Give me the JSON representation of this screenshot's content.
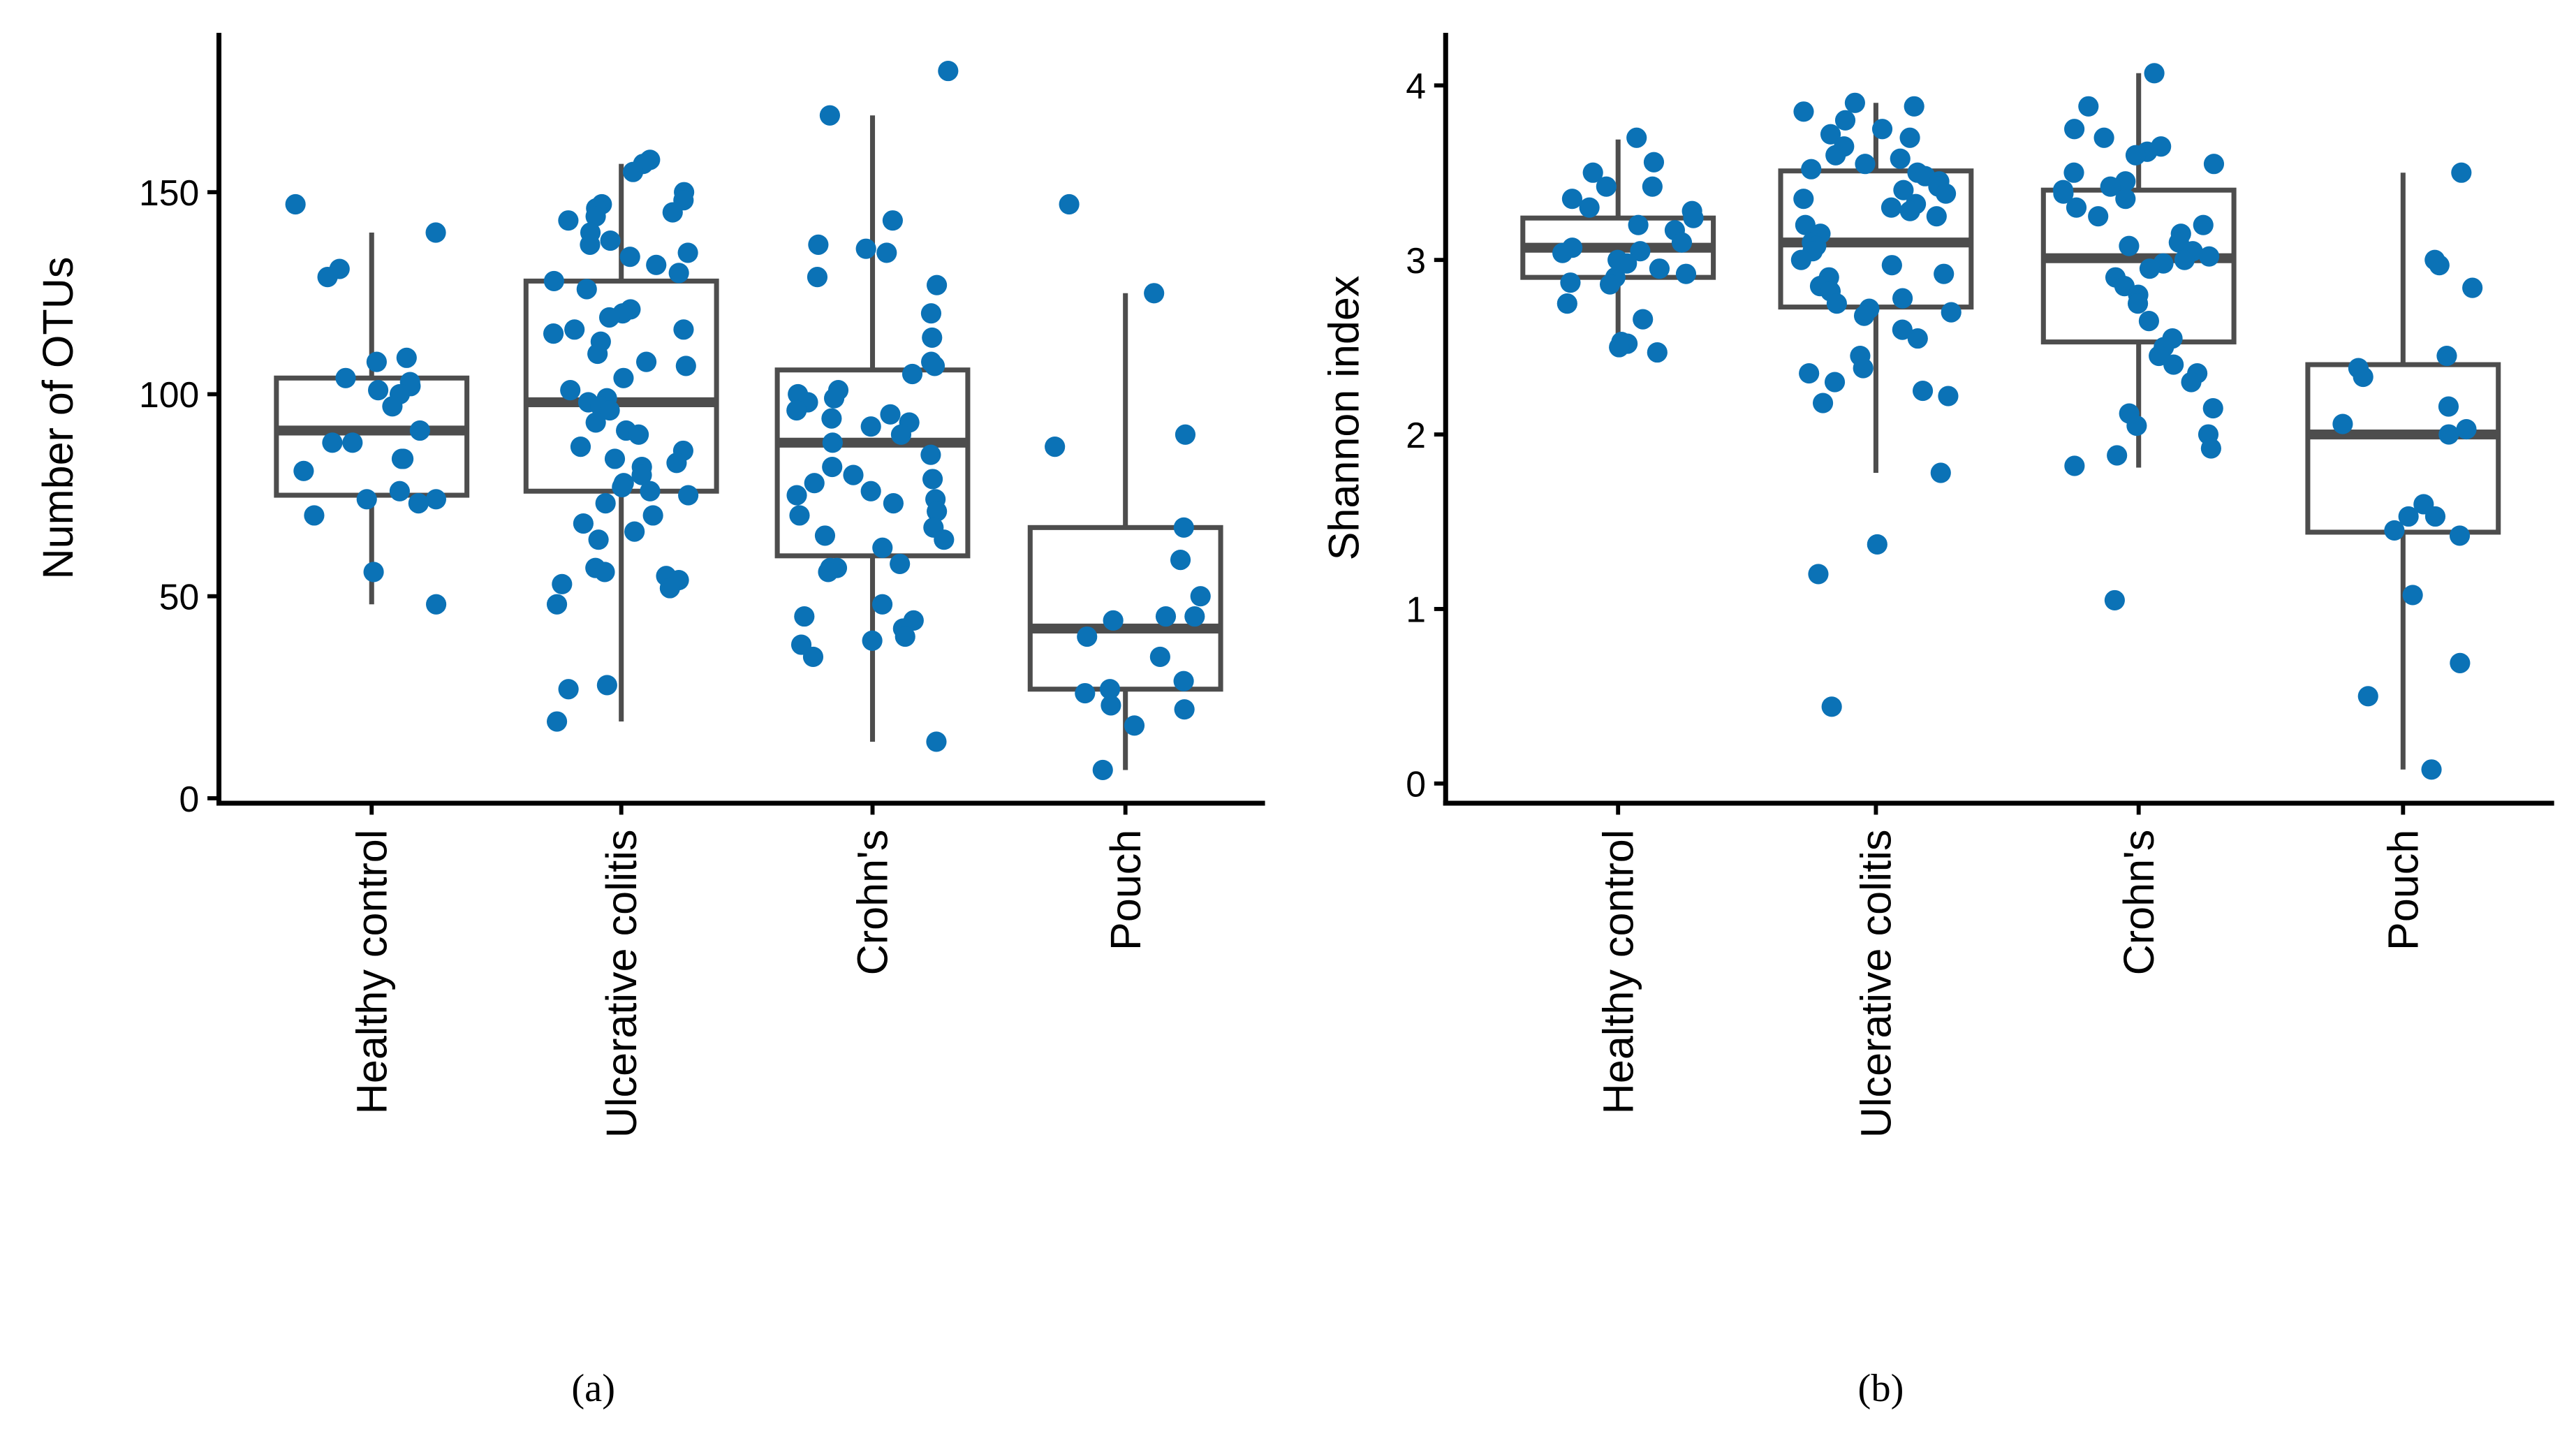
{
  "colors": {
    "point": "#0b72b6",
    "box": "#4d4d4d",
    "axis": "#000000"
  },
  "chart_data": [
    {
      "type": "box",
      "caption": "(a)",
      "ylabel": "Number of OTUs",
      "xlabel": "",
      "ylim": [
        0,
        190
      ],
      "yticks": [
        0,
        50,
        100,
        150
      ],
      "grid": false,
      "categories": [
        "Healthy control",
        "Ulcerative colitis",
        "Crohn's",
        "Pouch"
      ],
      "boxes": [
        {
          "whisker_low": 48,
          "q1": 75,
          "median": 91,
          "q3": 104,
          "whisker_high": 140
        },
        {
          "whisker_low": 19,
          "q1": 76,
          "median": 98,
          "q3": 128,
          "whisker_high": 157
        },
        {
          "whisker_low": 14,
          "q1": 60,
          "median": 88,
          "q3": 106,
          "whisker_high": 169
        },
        {
          "whisker_low": 7,
          "q1": 27,
          "median": 42,
          "q3": 67,
          "whisker_high": 125
        }
      ],
      "points": [
        [
          147,
          140,
          131,
          129,
          109,
          108,
          104,
          103,
          102,
          101,
          100,
          97,
          91,
          88,
          88,
          84,
          84,
          81,
          76,
          74,
          74,
          73,
          70,
          56,
          48
        ],
        [
          158,
          157,
          155,
          150,
          148,
          147,
          146,
          145,
          144,
          143,
          140,
          138,
          137,
          135,
          134,
          132,
          130,
          128,
          126,
          121,
          120,
          119,
          116,
          116,
          115,
          113,
          110,
          108,
          107,
          104,
          101,
          99,
          98,
          97,
          96,
          93,
          91,
          90,
          87,
          86,
          84,
          83,
          82,
          80,
          78,
          77,
          76,
          75,
          73,
          70,
          68,
          66,
          64,
          57,
          56,
          55,
          54,
          53,
          52,
          48,
          28,
          27,
          19
        ],
        [
          180,
          169,
          143,
          137,
          136,
          135,
          129,
          127,
          120,
          114,
          108,
          107,
          105,
          101,
          100,
          99,
          98,
          96,
          95,
          94,
          93,
          92,
          90,
          88,
          85,
          82,
          80,
          79,
          78,
          76,
          75,
          74,
          73,
          71,
          70,
          67,
          65,
          64,
          62,
          58,
          57,
          57,
          56,
          48,
          45,
          44,
          42,
          40,
          39,
          38,
          35,
          14
        ],
        [
          147,
          125,
          90,
          87,
          67,
          59,
          50,
          45,
          45,
          44,
          40,
          35,
          29,
          27,
          26,
          23,
          22,
          18,
          7
        ]
      ]
    },
    {
      "type": "box",
      "caption": "(b)",
      "ylabel": "Shannon index",
      "xlabel": "",
      "ylim": [
        -0.1,
        4.3
      ],
      "yticks": [
        0,
        1,
        2,
        3,
        4
      ],
      "grid": false,
      "categories": [
        "Healthy control",
        "Ulcerative colitis",
        "Crohn's",
        "Pouch"
      ],
      "boxes": [
        {
          "whisker_low": 2.47,
          "q1": 2.9,
          "median": 3.07,
          "q3": 3.24,
          "whisker_high": 3.69
        },
        {
          "whisker_low": 1.78,
          "q1": 2.73,
          "median": 3.1,
          "q3": 3.51,
          "whisker_high": 3.9
        },
        {
          "whisker_low": 1.81,
          "q1": 2.53,
          "median": 3.01,
          "q3": 3.4,
          "whisker_high": 4.07
        },
        {
          "whisker_low": 0.08,
          "q1": 1.44,
          "median": 2.0,
          "q3": 2.4,
          "whisker_high": 3.5
        }
      ],
      "points": [
        [
          3.7,
          3.56,
          3.5,
          3.42,
          3.42,
          3.35,
          3.3,
          3.28,
          3.24,
          3.2,
          3.17,
          3.1,
          3.07,
          3.05,
          3.04,
          3.0,
          2.98,
          2.95,
          2.92,
          2.9,
          2.87,
          2.86,
          2.75,
          2.66,
          2.53,
          2.52,
          2.5,
          2.47
        ],
        [
          3.9,
          3.88,
          3.85,
          3.8,
          3.75,
          3.72,
          3.7,
          3.65,
          3.6,
          3.58,
          3.55,
          3.52,
          3.5,
          3.48,
          3.45,
          3.42,
          3.4,
          3.38,
          3.35,
          3.32,
          3.3,
          3.28,
          3.25,
          3.2,
          3.15,
          3.1,
          3.08,
          3.05,
          3.0,
          2.97,
          2.92,
          2.9,
          2.85,
          2.82,
          2.78,
          2.75,
          2.72,
          2.7,
          2.68,
          2.6,
          2.55,
          2.45,
          2.38,
          2.35,
          2.3,
          2.25,
          2.22,
          2.18,
          1.78,
          1.37,
          1.2,
          0.44
        ],
        [
          4.07,
          3.88,
          3.75,
          3.7,
          3.65,
          3.62,
          3.6,
          3.55,
          3.5,
          3.45,
          3.42,
          3.4,
          3.38,
          3.35,
          3.3,
          3.25,
          3.2,
          3.15,
          3.1,
          3.08,
          3.05,
          3.02,
          3.0,
          2.98,
          2.95,
          2.9,
          2.85,
          2.8,
          2.75,
          2.65,
          2.55,
          2.5,
          2.45,
          2.4,
          2.35,
          2.3,
          2.15,
          2.12,
          2.05,
          2.0,
          1.92,
          1.88,
          1.82,
          1.05
        ],
        [
          3.5,
          3.0,
          2.97,
          2.84,
          2.45,
          2.38,
          2.33,
          2.16,
          2.06,
          2.03,
          2.0,
          1.6,
          1.53,
          1.53,
          1.45,
          1.42,
          1.08,
          0.69,
          0.5,
          0.08
        ]
      ]
    }
  ]
}
